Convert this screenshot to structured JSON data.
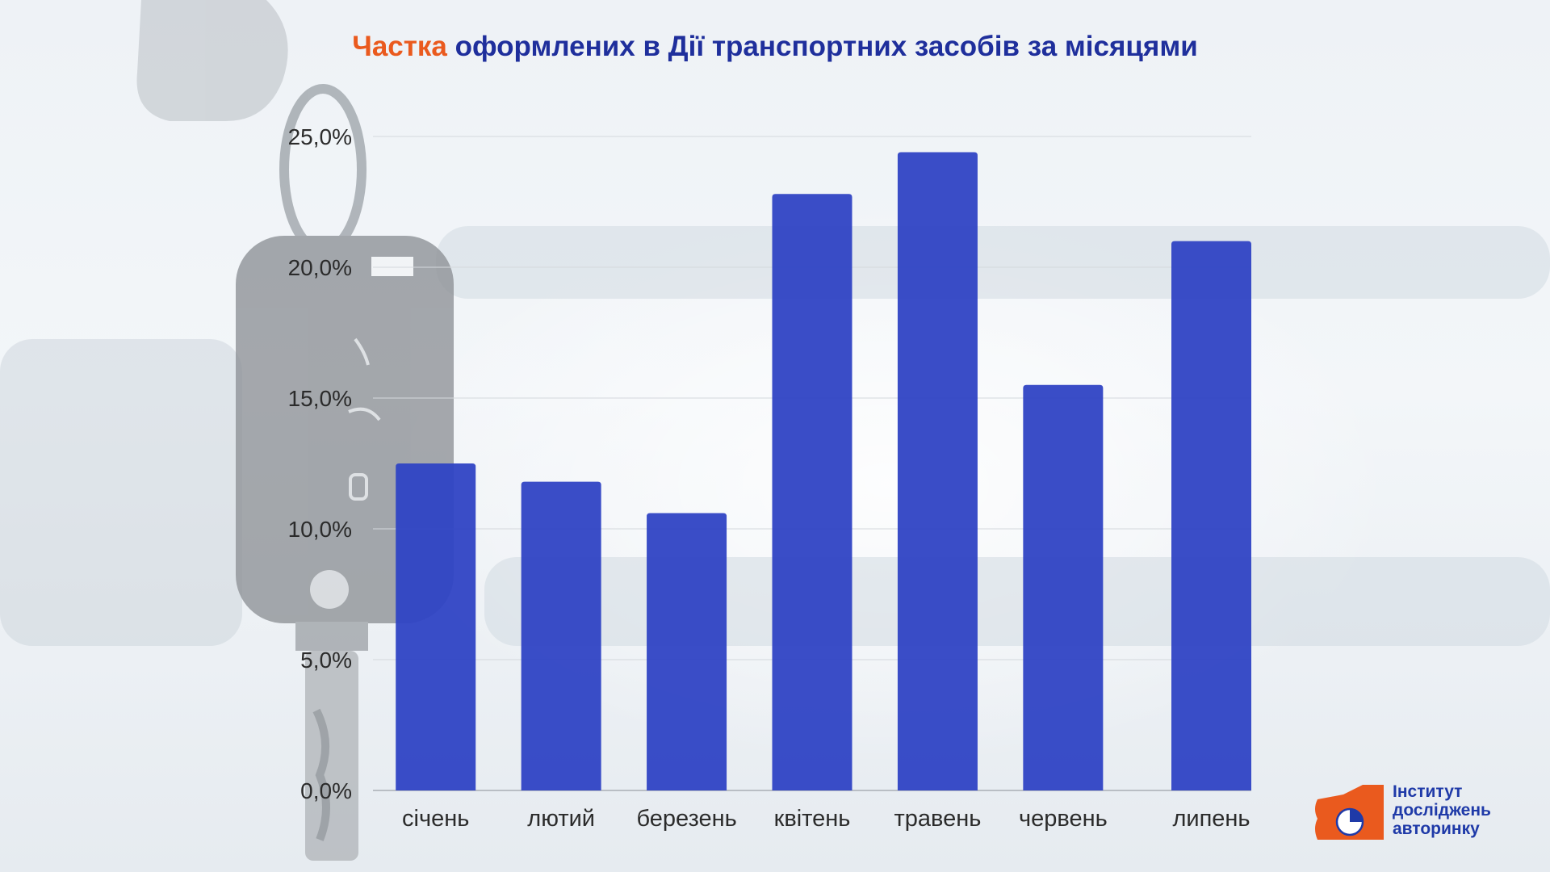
{
  "title": {
    "accent": "Частка",
    "rest": " оформлених в Дії транспортних засобів за місяцями"
  },
  "colors": {
    "bar": "#2f43c4",
    "accent": "#ea5a1e",
    "title": "#1f2f9c"
  },
  "chart_data": {
    "type": "bar",
    "categories": [
      "січень",
      "лютий",
      "березень",
      "квітень",
      "травень",
      "червень",
      "липень"
    ],
    "values": [
      12.5,
      11.8,
      10.6,
      22.8,
      24.4,
      15.5,
      21.0
    ],
    "yticks": [
      "0,0%",
      "5,0%",
      "10,0%",
      "15,0%",
      "20,0%",
      "25,0%"
    ],
    "ylim": [
      0,
      25
    ],
    "grid": true,
    "title": "Частка оформлених в Дії транспортних засобів за місяцями"
  },
  "logo": {
    "line1": "Інститут",
    "line2": "досліджень",
    "line3": "авторинку"
  }
}
